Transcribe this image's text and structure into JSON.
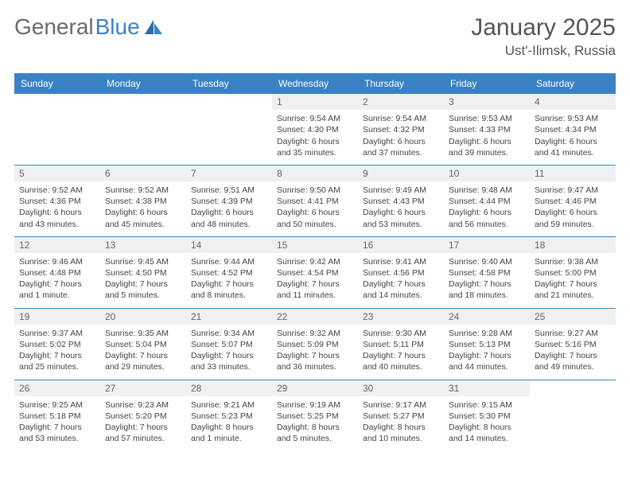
{
  "brand": {
    "part1": "General",
    "part2": "Blue"
  },
  "title": "January 2025",
  "location": "Ust'-Ilimsk, Russia",
  "colors": {
    "header_bg": "#3b82c4",
    "header_text": "#ffffff",
    "daynum_bg": "#eef0f2",
    "border": "#3b82c4",
    "text": "#444444",
    "title_text": "#555555",
    "logo_gray": "#6a6a6a",
    "logo_blue": "#3b82c4",
    "page_bg": "#ffffff"
  },
  "day_names": [
    "Sunday",
    "Monday",
    "Tuesday",
    "Wednesday",
    "Thursday",
    "Friday",
    "Saturday"
  ],
  "weeks": [
    [
      {
        "empty": true
      },
      {
        "empty": true
      },
      {
        "empty": true
      },
      {
        "day": "1",
        "sunrise": "Sunrise: 9:54 AM",
        "sunset": "Sunset: 4:30 PM",
        "daylight1": "Daylight: 6 hours",
        "daylight2": "and 35 minutes."
      },
      {
        "day": "2",
        "sunrise": "Sunrise: 9:54 AM",
        "sunset": "Sunset: 4:32 PM",
        "daylight1": "Daylight: 6 hours",
        "daylight2": "and 37 minutes."
      },
      {
        "day": "3",
        "sunrise": "Sunrise: 9:53 AM",
        "sunset": "Sunset: 4:33 PM",
        "daylight1": "Daylight: 6 hours",
        "daylight2": "and 39 minutes."
      },
      {
        "day": "4",
        "sunrise": "Sunrise: 9:53 AM",
        "sunset": "Sunset: 4:34 PM",
        "daylight1": "Daylight: 6 hours",
        "daylight2": "and 41 minutes."
      }
    ],
    [
      {
        "day": "5",
        "sunrise": "Sunrise: 9:52 AM",
        "sunset": "Sunset: 4:36 PM",
        "daylight1": "Daylight: 6 hours",
        "daylight2": "and 43 minutes."
      },
      {
        "day": "6",
        "sunrise": "Sunrise: 9:52 AM",
        "sunset": "Sunset: 4:38 PM",
        "daylight1": "Daylight: 6 hours",
        "daylight2": "and 45 minutes."
      },
      {
        "day": "7",
        "sunrise": "Sunrise: 9:51 AM",
        "sunset": "Sunset: 4:39 PM",
        "daylight1": "Daylight: 6 hours",
        "daylight2": "and 48 minutes."
      },
      {
        "day": "8",
        "sunrise": "Sunrise: 9:50 AM",
        "sunset": "Sunset: 4:41 PM",
        "daylight1": "Daylight: 6 hours",
        "daylight2": "and 50 minutes."
      },
      {
        "day": "9",
        "sunrise": "Sunrise: 9:49 AM",
        "sunset": "Sunset: 4:43 PM",
        "daylight1": "Daylight: 6 hours",
        "daylight2": "and 53 minutes."
      },
      {
        "day": "10",
        "sunrise": "Sunrise: 9:48 AM",
        "sunset": "Sunset: 4:44 PM",
        "daylight1": "Daylight: 6 hours",
        "daylight2": "and 56 minutes."
      },
      {
        "day": "11",
        "sunrise": "Sunrise: 9:47 AM",
        "sunset": "Sunset: 4:46 PM",
        "daylight1": "Daylight: 6 hours",
        "daylight2": "and 59 minutes."
      }
    ],
    [
      {
        "day": "12",
        "sunrise": "Sunrise: 9:46 AM",
        "sunset": "Sunset: 4:48 PM",
        "daylight1": "Daylight: 7 hours",
        "daylight2": "and 1 minute."
      },
      {
        "day": "13",
        "sunrise": "Sunrise: 9:45 AM",
        "sunset": "Sunset: 4:50 PM",
        "daylight1": "Daylight: 7 hours",
        "daylight2": "and 5 minutes."
      },
      {
        "day": "14",
        "sunrise": "Sunrise: 9:44 AM",
        "sunset": "Sunset: 4:52 PM",
        "daylight1": "Daylight: 7 hours",
        "daylight2": "and 8 minutes."
      },
      {
        "day": "15",
        "sunrise": "Sunrise: 9:42 AM",
        "sunset": "Sunset: 4:54 PM",
        "daylight1": "Daylight: 7 hours",
        "daylight2": "and 11 minutes."
      },
      {
        "day": "16",
        "sunrise": "Sunrise: 9:41 AM",
        "sunset": "Sunset: 4:56 PM",
        "daylight1": "Daylight: 7 hours",
        "daylight2": "and 14 minutes."
      },
      {
        "day": "17",
        "sunrise": "Sunrise: 9:40 AM",
        "sunset": "Sunset: 4:58 PM",
        "daylight1": "Daylight: 7 hours",
        "daylight2": "and 18 minutes."
      },
      {
        "day": "18",
        "sunrise": "Sunrise: 9:38 AM",
        "sunset": "Sunset: 5:00 PM",
        "daylight1": "Daylight: 7 hours",
        "daylight2": "and 21 minutes."
      }
    ],
    [
      {
        "day": "19",
        "sunrise": "Sunrise: 9:37 AM",
        "sunset": "Sunset: 5:02 PM",
        "daylight1": "Daylight: 7 hours",
        "daylight2": "and 25 minutes."
      },
      {
        "day": "20",
        "sunrise": "Sunrise: 9:35 AM",
        "sunset": "Sunset: 5:04 PM",
        "daylight1": "Daylight: 7 hours",
        "daylight2": "and 29 minutes."
      },
      {
        "day": "21",
        "sunrise": "Sunrise: 9:34 AM",
        "sunset": "Sunset: 5:07 PM",
        "daylight1": "Daylight: 7 hours",
        "daylight2": "and 33 minutes."
      },
      {
        "day": "22",
        "sunrise": "Sunrise: 9:32 AM",
        "sunset": "Sunset: 5:09 PM",
        "daylight1": "Daylight: 7 hours",
        "daylight2": "and 36 minutes."
      },
      {
        "day": "23",
        "sunrise": "Sunrise: 9:30 AM",
        "sunset": "Sunset: 5:11 PM",
        "daylight1": "Daylight: 7 hours",
        "daylight2": "and 40 minutes."
      },
      {
        "day": "24",
        "sunrise": "Sunrise: 9:28 AM",
        "sunset": "Sunset: 5:13 PM",
        "daylight1": "Daylight: 7 hours",
        "daylight2": "and 44 minutes."
      },
      {
        "day": "25",
        "sunrise": "Sunrise: 9:27 AM",
        "sunset": "Sunset: 5:16 PM",
        "daylight1": "Daylight: 7 hours",
        "daylight2": "and 49 minutes."
      }
    ],
    [
      {
        "day": "26",
        "sunrise": "Sunrise: 9:25 AM",
        "sunset": "Sunset: 5:18 PM",
        "daylight1": "Daylight: 7 hours",
        "daylight2": "and 53 minutes."
      },
      {
        "day": "27",
        "sunrise": "Sunrise: 9:23 AM",
        "sunset": "Sunset: 5:20 PM",
        "daylight1": "Daylight: 7 hours",
        "daylight2": "and 57 minutes."
      },
      {
        "day": "28",
        "sunrise": "Sunrise: 9:21 AM",
        "sunset": "Sunset: 5:23 PM",
        "daylight1": "Daylight: 8 hours",
        "daylight2": "and 1 minute."
      },
      {
        "day": "29",
        "sunrise": "Sunrise: 9:19 AM",
        "sunset": "Sunset: 5:25 PM",
        "daylight1": "Daylight: 8 hours",
        "daylight2": "and 5 minutes."
      },
      {
        "day": "30",
        "sunrise": "Sunrise: 9:17 AM",
        "sunset": "Sunset: 5:27 PM",
        "daylight1": "Daylight: 8 hours",
        "daylight2": "and 10 minutes."
      },
      {
        "day": "31",
        "sunrise": "Sunrise: 9:15 AM",
        "sunset": "Sunset: 5:30 PM",
        "daylight1": "Daylight: 8 hours",
        "daylight2": "and 14 minutes."
      },
      {
        "empty": true
      }
    ]
  ]
}
